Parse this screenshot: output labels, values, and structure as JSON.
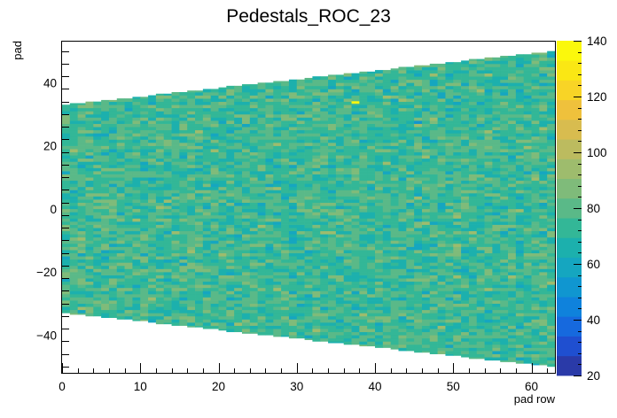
{
  "chart_data": {
    "type": "heatmap",
    "title": "Pedestals_ROC_23",
    "xlabel": "pad row",
    "ylabel": "pad",
    "xlim": [
      0,
      63
    ],
    "ylim": [
      -52,
      53
    ],
    "zlim": [
      20,
      140
    ],
    "x_ticks": [
      "0",
      "10",
      "20",
      "30",
      "40",
      "50",
      "60"
    ],
    "y_ticks": [
      "−40",
      "−20",
      "0",
      "20",
      "40"
    ],
    "z_ticks": [
      "20",
      "40",
      "60",
      "80",
      "100",
      "120",
      "140"
    ],
    "n_rows": 63,
    "pads_per_row_first": 66,
    "pads_per_row_last": 100,
    "typical_value_range": [
      50,
      95
    ],
    "mean_value": 75,
    "hot_pixel": {
      "row": 37,
      "pad": 33.5,
      "value": 135
    },
    "grid": false,
    "colorbar": "right"
  }
}
